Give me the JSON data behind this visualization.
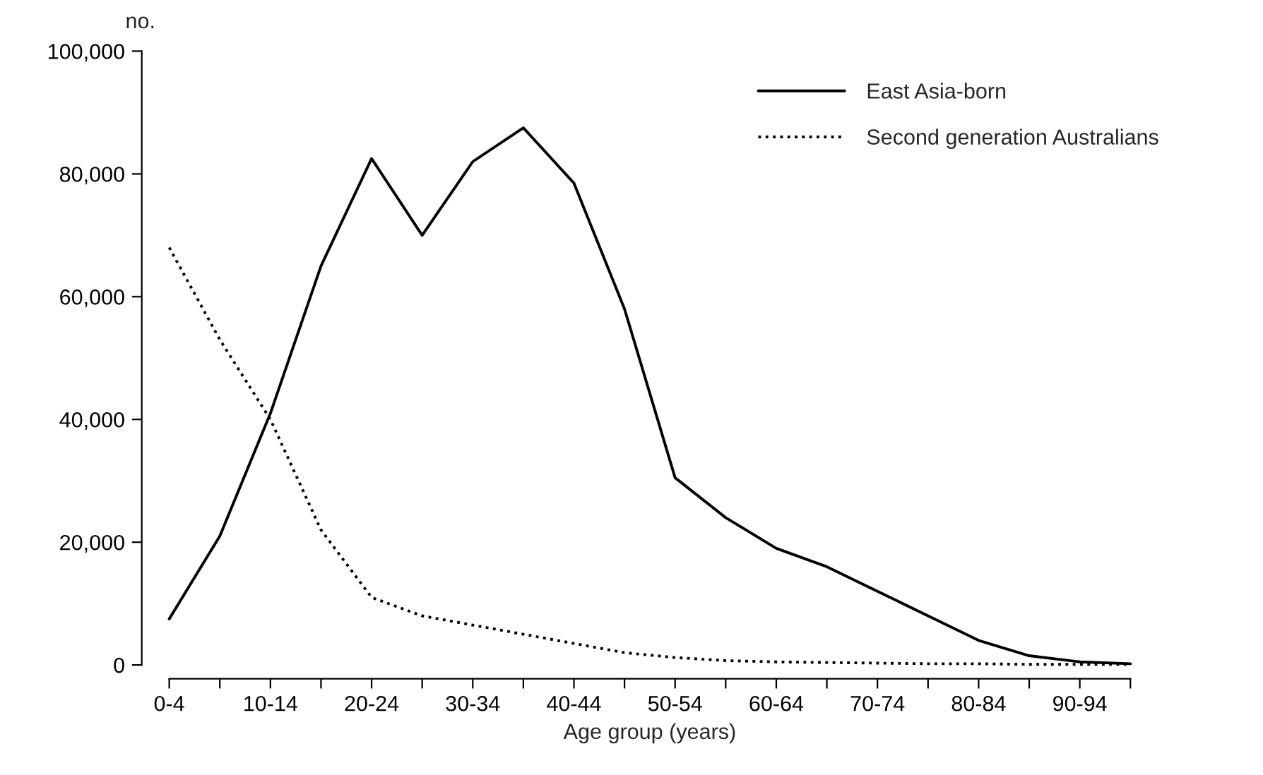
{
  "chart_data": {
    "type": "line",
    "xlabel": "Age group (years)",
    "ylabel": "no.",
    "categories": [
      "0-4",
      null,
      "10-14",
      null,
      "20-24",
      null,
      "30-34",
      null,
      "40-44",
      null,
      "50-54",
      null,
      "60-64",
      null,
      "70-74",
      null,
      "80-84",
      null,
      "90-94",
      null
    ],
    "series": [
      {
        "name": "East Asia-born",
        "color": "#000000",
        "line_style": "solid",
        "values": [
          7500,
          21000,
          41000,
          65000,
          82500,
          70000,
          82000,
          87500,
          78500,
          58000,
          30500,
          24000,
          19000,
          16000,
          12000,
          8000,
          4000,
          1500,
          500,
          200
        ]
      },
      {
        "name": "Second generation Australians",
        "color": "#000000",
        "line_style": "dotted",
        "values": [
          68000,
          53000,
          40000,
          22000,
          11000,
          8000,
          6500,
          5000,
          3500,
          2000,
          1200,
          700,
          500,
          400,
          300,
          200,
          200,
          100,
          100,
          100
        ]
      }
    ],
    "ylim": [
      0,
      100000
    ],
    "yticks": [
      {
        "value": 0,
        "label": "0"
      },
      {
        "value": 20000,
        "label": "20,000"
      },
      {
        "value": 40000,
        "label": "40,000"
      },
      {
        "value": 60000,
        "label": "60,000"
      },
      {
        "value": 80000,
        "label": "80,000"
      },
      {
        "value": 100000,
        "label": "100,000"
      }
    ],
    "grid": false,
    "legend": "top right",
    "marker": "none"
  }
}
